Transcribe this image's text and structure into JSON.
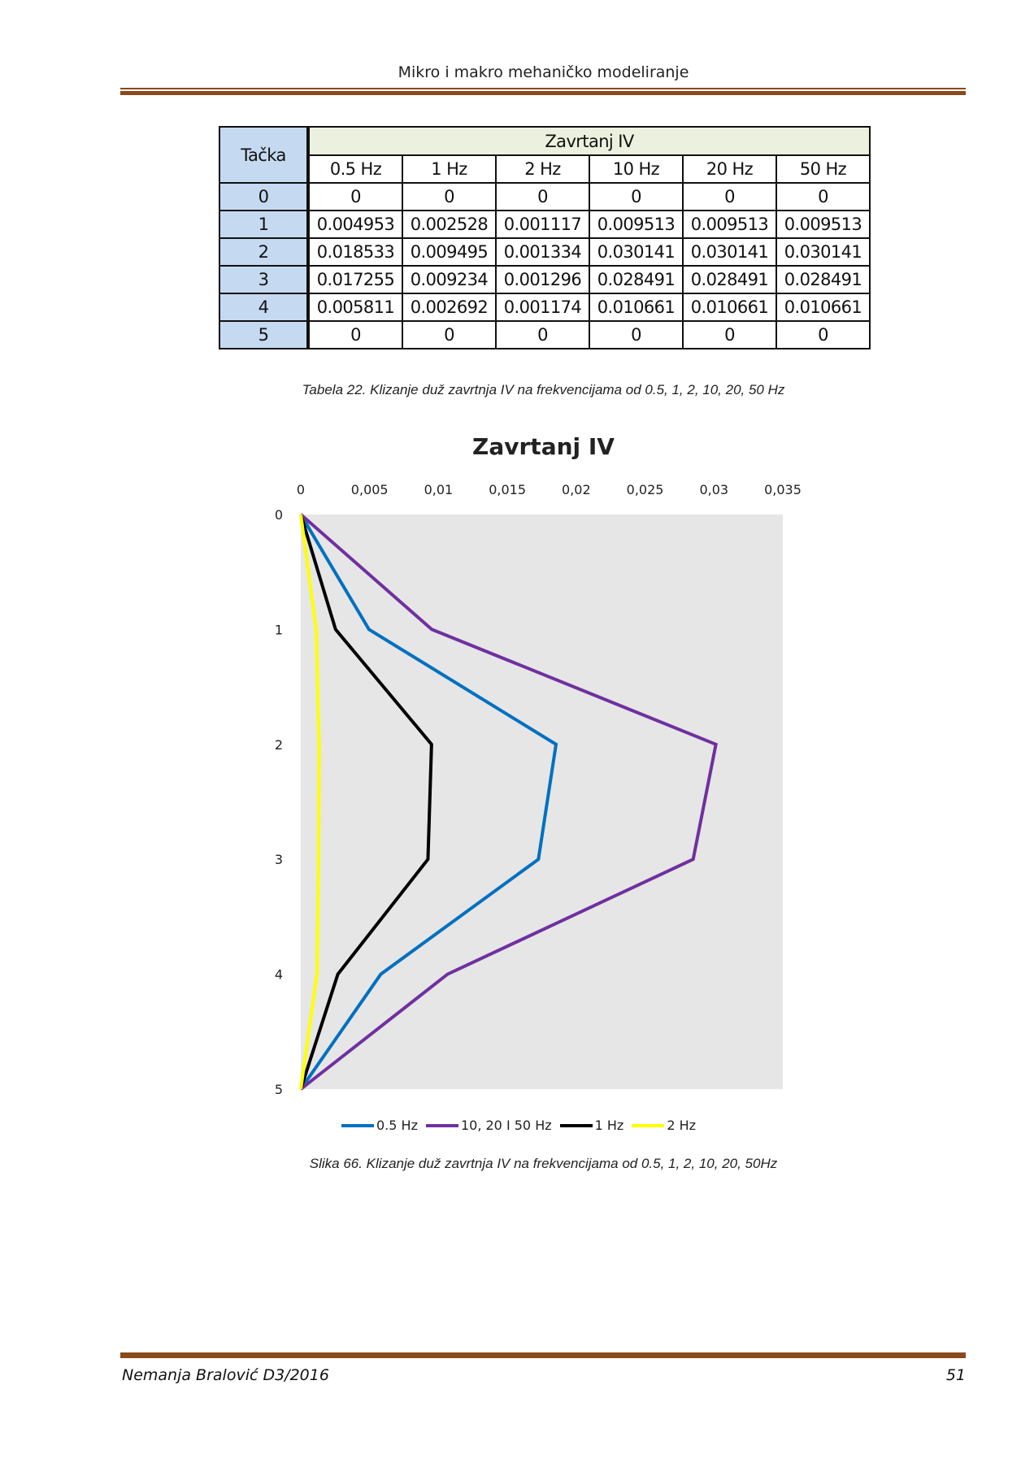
{
  "header": {
    "title": "Mikro i makro mehaničko modeliranje"
  },
  "table": {
    "row_header": "Tačka",
    "group_header": "Zavrtanj IV",
    "columns": [
      "0.5 Hz",
      "1 Hz",
      "2 Hz",
      "10 Hz",
      "20 Hz",
      "50 Hz"
    ],
    "rows": [
      {
        "point": "0",
        "values": [
          "0",
          "0",
          "0",
          "0",
          "0",
          "0"
        ]
      },
      {
        "point": "1",
        "values": [
          "0.004953",
          "0.002528",
          "0.001117",
          "0.009513",
          "0.009513",
          "0.009513"
        ]
      },
      {
        "point": "2",
        "values": [
          "0.018533",
          "0.009495",
          "0.001334",
          "0.030141",
          "0.030141",
          "0.030141"
        ]
      },
      {
        "point": "3",
        "values": [
          "0.017255",
          "0.009234",
          "0.001296",
          "0.028491",
          "0.028491",
          "0.028491"
        ]
      },
      {
        "point": "4",
        "values": [
          "0.005811",
          "0.002692",
          "0.001174",
          "0.010661",
          "0.010661",
          "0.010661"
        ]
      },
      {
        "point": "5",
        "values": [
          "0",
          "0",
          "0",
          "0",
          "0",
          "0"
        ]
      }
    ]
  },
  "table_caption": "Tabela 22. Klizanje duž zavrtnja IV na frekvencijama od 0.5, 1, 2, 10, 20, 50 Hz",
  "chart_data": {
    "type": "line",
    "title": "Zavrtanj IV",
    "orientation": "vertical-profile",
    "x_axis_position": "top",
    "xlim": [
      0,
      0.035
    ],
    "x_ticks": [
      "0",
      "0,005",
      "0,01",
      "0,015",
      "0,02",
      "0,025",
      "0,03",
      "0,035"
    ],
    "y_ticks": [
      "0",
      "1",
      "2",
      "3",
      "4",
      "5"
    ],
    "ylim": [
      0,
      5
    ],
    "y_reversed": true,
    "grid": false,
    "plot_background": "#e6e6e6",
    "legend_position": "bottom",
    "points": [
      0,
      1,
      2,
      3,
      4,
      5
    ],
    "series": [
      {
        "name": "0.5 Hz",
        "color": "#0070c0",
        "values": [
          0,
          0.004953,
          0.018533,
          0.017255,
          0.005811,
          0
        ]
      },
      {
        "name": "10, 20 I 50 Hz",
        "color": "#7030a0",
        "values": [
          0,
          0.009513,
          0.030141,
          0.028491,
          0.010661,
          0
        ]
      },
      {
        "name": "1 Hz",
        "color": "#000000",
        "values": [
          0,
          0.002528,
          0.009495,
          0.009234,
          0.002692,
          0
        ]
      },
      {
        "name": "2 Hz",
        "color": "#ffff00",
        "values": [
          0,
          0.001117,
          0.001334,
          0.001296,
          0.001174,
          0
        ]
      }
    ]
  },
  "figure_caption": "Slika 66. Klizanje duž zavrtnja IV na frekvencijama od 0.5, 1, 2, 10, 20, 50Hz",
  "footer": {
    "author": "Nemanja Bralović D3/2016",
    "page_number": "51"
  }
}
